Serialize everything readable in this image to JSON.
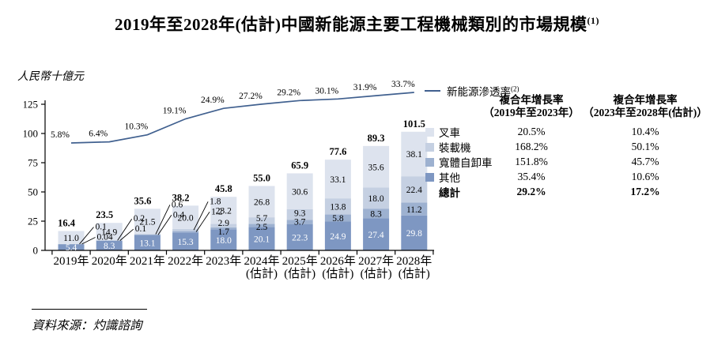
{
  "title": {
    "text": "2019年至2028年(估計)中國新能源主要工程機械類別的市場規模",
    "superscript": "(1)"
  },
  "y_axis_label": "人民幣十億元",
  "chart_data": {
    "type": "bar",
    "stacked": true,
    "title": "2019年至2028年(估計)中國新能源主要工程機械類別的市場規模",
    "ylabel": "人民幣十億元",
    "y_ticks": [
      0,
      25,
      50,
      75,
      100,
      125
    ],
    "ylim": [
      0,
      125
    ],
    "grid": false,
    "legend_position": "right",
    "categories": [
      "2019年",
      "2020年",
      "2021年",
      "2022年",
      "2023年",
      "2024年",
      "2025年",
      "2026年",
      "2027年",
      "2028年"
    ],
    "category_notes": [
      "",
      "",
      "",
      "",
      "",
      "(估計)",
      "(估計)",
      "(估計)",
      "(估計)",
      "(估計)"
    ],
    "series": [
      {
        "name": "其他",
        "color": "#7e97c2",
        "label_color": "#ffffff",
        "values": [
          "5.4",
          "8.3",
          "13.1",
          "15.3",
          "18.0",
          "20.1",
          "22.3",
          "24.9",
          "27.4",
          "29.8"
        ]
      },
      {
        "name": "寬體自卸車",
        "color": "#9db1d0",
        "label_color": "#000000",
        "values": [
          "0.04",
          "0.1",
          "0.4",
          "1.2",
          "1.7",
          "2.5",
          "3.7",
          "5.8",
          "8.3",
          "11.2"
        ]
      },
      {
        "name": "裝載機",
        "color": "#c5d0e2",
        "label_color": "#000000",
        "values": [
          "0.1",
          "0.2",
          "0.6",
          "1.8",
          "2.9",
          "5.7",
          "9.3",
          "13.8",
          "18.0",
          "22.4"
        ]
      },
      {
        "name": "叉車",
        "color": "#dde3ee",
        "label_color": "#000000",
        "values": [
          "11.0",
          "14.9",
          "21.5",
          "20.0",
          "23.2",
          "26.8",
          "30.6",
          "33.1",
          "35.6",
          "38.1"
        ]
      }
    ],
    "totals": [
      "16.4",
      "23.5",
      "35.6",
      "38.2",
      "45.8",
      "55.0",
      "65.9",
      "77.6",
      "89.3",
      "101.5"
    ],
    "line_series": {
      "name": "新能源滲透率",
      "superscript": "(2)",
      "color": "#40608f",
      "unit": "%",
      "values": [
        5.8,
        6.4,
        10.3,
        19.1,
        24.9,
        27.2,
        29.2,
        30.1,
        31.9,
        33.7
      ]
    }
  },
  "cagr_table": {
    "col1_header": {
      "line1": "複合年增長率",
      "line2": "（2019年至2023年）"
    },
    "col2_header": {
      "line1": "複合年增長率",
      "line2": "（2023年至2028年(估計)）"
    },
    "rows": [
      {
        "label": "叉車",
        "swatch": "#dde3ee",
        "col1": "20.5%",
        "col2": "10.4%",
        "bold": false
      },
      {
        "label": "裝載機",
        "swatch": "#c5d0e2",
        "col1": "168.2%",
        "col2": "50.1%",
        "bold": false
      },
      {
        "label": "寬體自卸車",
        "swatch": "#9db1d0",
        "col1": "151.8%",
        "col2": "45.7%",
        "bold": false
      },
      {
        "label": "其他",
        "swatch": "#7e97c2",
        "col1": "35.4%",
        "col2": "10.6%",
        "bold": false
      },
      {
        "label": "總計",
        "swatch": null,
        "col1": "29.2%",
        "col2": "17.2%",
        "bold": true
      }
    ]
  },
  "footnote": {
    "source": "資料來源：灼識諮詢"
  }
}
